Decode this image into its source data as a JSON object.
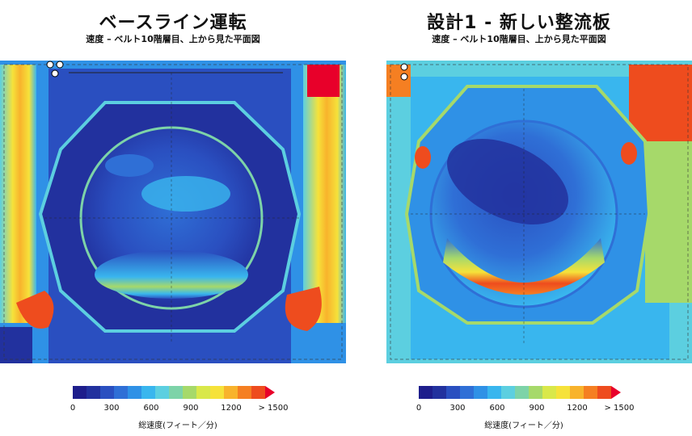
{
  "panels": [
    {
      "title": "ベースライン運転",
      "subtitle": "速度 – ベルト10階層目、上から見た平面図"
    },
    {
      "title": "設計1 - 新しい整流板",
      "subtitle": "速度 – ベルト10階層目、上から見た平面図"
    }
  ],
  "legend": {
    "ticks": [
      "0",
      "300",
      "600",
      "900",
      "1200",
      "> 1500"
    ],
    "label": "総速度(フィート／分)",
    "colors": [
      "#1e1e8c",
      "#22319e",
      "#2a4fc0",
      "#2f6fd6",
      "#2f91e6",
      "#39b6ee",
      "#5ccfe0",
      "#7dd3a8",
      "#a6d96a",
      "#d9e84a",
      "#f6e23a",
      "#f8b32c",
      "#f57f22",
      "#ee4c1e",
      "#e8002a"
    ]
  }
}
